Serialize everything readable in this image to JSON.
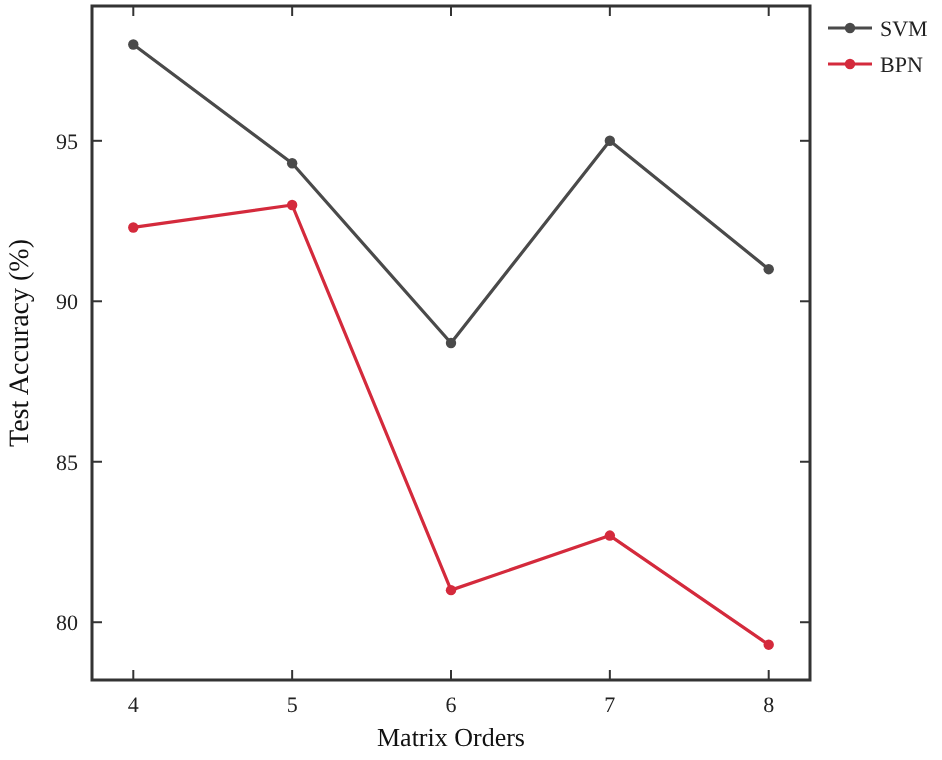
{
  "chart_data": {
    "type": "line",
    "xlabel": "Matrix Orders",
    "ylabel": "Test Accuracy (%)",
    "x": [
      4,
      5,
      6,
      7,
      8
    ],
    "series": [
      {
        "name": "SVM",
        "color": "#4a4a4a",
        "values": [
          98.0,
          94.3,
          88.7,
          95.0,
          91.0
        ]
      },
      {
        "name": "BPN",
        "color": "#d42a3c",
        "values": [
          92.3,
          93.0,
          81.0,
          82.7,
          79.3
        ]
      }
    ],
    "xlim": [
      3.74,
      8.26
    ],
    "ylim": [
      78.2,
      99.2
    ],
    "xticks": [
      4,
      5,
      6,
      7,
      8
    ],
    "yticks": [
      80,
      85,
      90,
      95
    ],
    "grid": false,
    "legend": "top right",
    "marker": "circle",
    "line_style": "solid"
  }
}
